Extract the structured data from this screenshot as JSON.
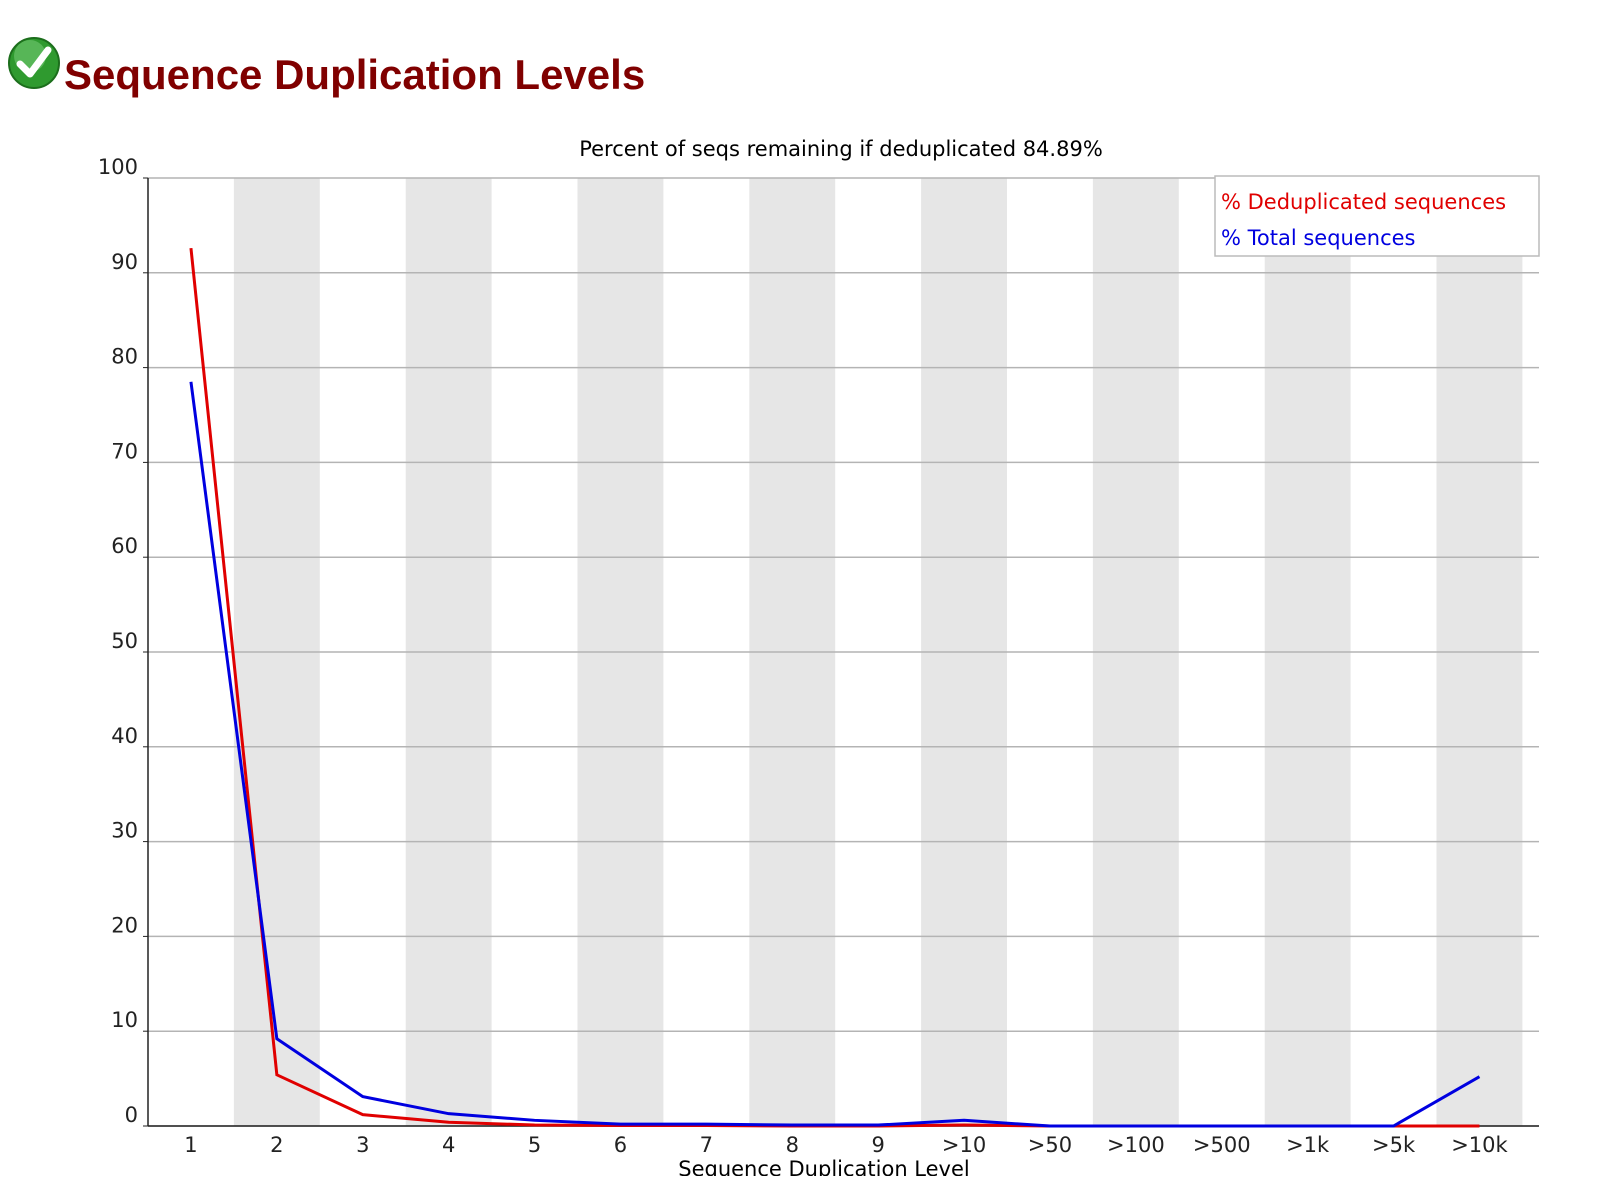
{
  "page_title": "Sequence Duplication Levels",
  "chart_data": {
    "type": "line",
    "title": "Percent of seqs remaining if deduplicated 84.89%",
    "x_label": "Sequence Duplication Level",
    "categories": [
      "1",
      "2",
      "3",
      "4",
      "5",
      "6",
      "7",
      "8",
      "9",
      ">10",
      ">50",
      ">100",
      ">500",
      ">1k",
      ">5k",
      ">10k"
    ],
    "series": [
      {
        "name": "% Deduplicated sequences",
        "color": "#e00000",
        "values": [
          92.6,
          5.4,
          1.2,
          0.4,
          0.1,
          0.05,
          0.05,
          0,
          0,
          0.1,
          0,
          0,
          0,
          0,
          0,
          0
        ]
      },
      {
        "name": "% Total sequences",
        "color": "#0000e0",
        "values": [
          78.5,
          9.2,
          3.1,
          1.3,
          0.6,
          0.2,
          0.2,
          0.1,
          0.1,
          0.6,
          0,
          0,
          0,
          0,
          0,
          5.2
        ]
      }
    ],
    "ylim": [
      0,
      100
    ],
    "yticks": [
      0,
      10,
      20,
      30,
      40,
      50,
      60,
      70,
      80,
      90,
      100
    ],
    "grid": true,
    "legend": "top-right"
  }
}
